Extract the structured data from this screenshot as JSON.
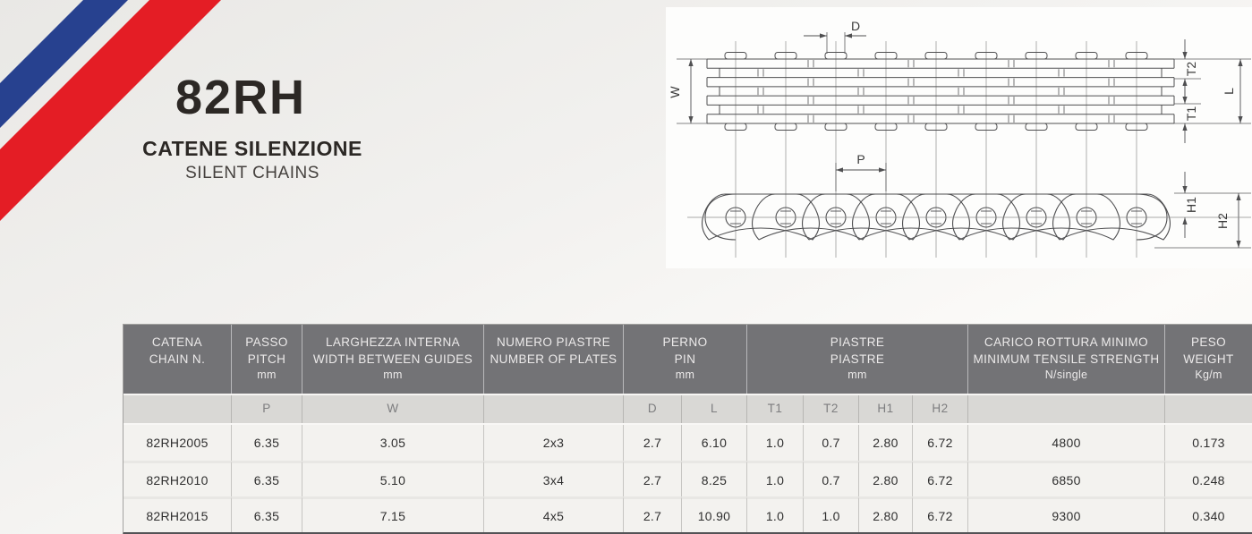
{
  "header": {
    "product_code": "82RH",
    "title_it": "CATENE SILENZIONE",
    "title_en": "SILENT CHAINS"
  },
  "diagram": {
    "plan_labels": {
      "d": "D",
      "w": "W",
      "t2": "T2",
      "t1": "T1",
      "l": "L"
    },
    "side_labels": {
      "p": "P",
      "h1": "H1",
      "h2": "H2"
    }
  },
  "table": {
    "column_groups": [
      {
        "line1": "CATENA",
        "line2": "CHAIN N.",
        "line3": "",
        "sub": [
          ""
        ]
      },
      {
        "line1": "PASSO",
        "line2": "PITCH",
        "line3": "mm",
        "sub": [
          "P"
        ]
      },
      {
        "line1": "LARGHEZZA INTERNA",
        "line2": "WIDTH BETWEEN GUIDES",
        "line3": "mm",
        "sub": [
          "W"
        ]
      },
      {
        "line1": "NUMERO PIASTRE",
        "line2": "NUMBER OF PLATES",
        "line3": "",
        "sub": [
          ""
        ]
      },
      {
        "line1": "PERNO",
        "line2": "PIN",
        "line3": "mm",
        "sub": [
          "D",
          "L"
        ]
      },
      {
        "line1": "PIASTRE",
        "line2": "PIASTRE",
        "line3": "mm",
        "sub": [
          "T1",
          "T2",
          "H1",
          "H2"
        ]
      },
      {
        "line1": "CARICO ROTTURA MINIMO",
        "line2": "MINIMUM TENSILE STRENGTH",
        "line3": "N/single",
        "sub": [
          ""
        ]
      },
      {
        "line1": "PESO",
        "line2": "WEIGHT",
        "line3": "Kg/m",
        "sub": [
          ""
        ]
      }
    ],
    "rows": [
      [
        "82RH2005",
        "6.35",
        "3.05",
        "2x3",
        "2.7",
        "6.10",
        "1.0",
        "0.7",
        "2.80",
        "6.72",
        "4800",
        "0.173"
      ],
      [
        "82RH2010",
        "6.35",
        "5.10",
        "3x4",
        "2.7",
        "8.25",
        "1.0",
        "0.7",
        "2.80",
        "6.72",
        "6850",
        "0.248"
      ],
      [
        "82RH2015",
        "6.35",
        "7.15",
        "4x5",
        "2.7",
        "10.90",
        "1.0",
        "1.0",
        "2.80",
        "6.72",
        "9300",
        "0.340"
      ]
    ]
  },
  "colors": {
    "accent_blue": "#27418f",
    "accent_red": "#e41d25",
    "header_gray": "#737376"
  }
}
